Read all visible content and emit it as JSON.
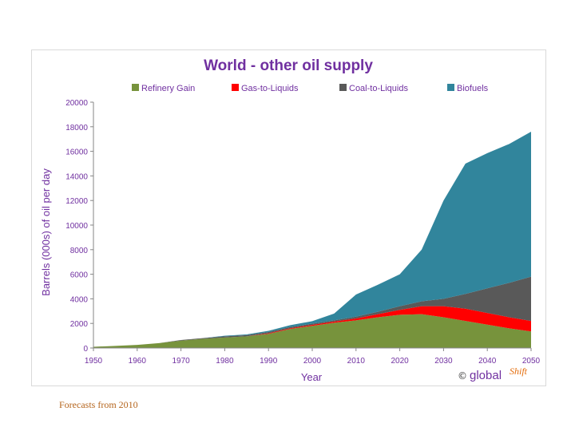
{
  "caption": "Forecasts from 2010",
  "watermark": {
    "copyright": "©",
    "brand_main": "global",
    "brand_sup": "Shift"
  },
  "chart_data": {
    "type": "area",
    "stacked": true,
    "title": "World - other oil supply",
    "xlabel": "Year",
    "ylabel": "Barrels (000s) of oil per day",
    "xlim": [
      1950,
      2050
    ],
    "ylim": [
      0,
      20000
    ],
    "x_ticks": [
      "1950",
      "1960",
      "1970",
      "1980",
      "1990",
      "2000",
      "2010",
      "2020",
      "2030",
      "2040",
      "2050"
    ],
    "y_ticks": [
      "0",
      "2000",
      "4000",
      "6000",
      "8000",
      "10000",
      "12000",
      "14000",
      "16000",
      "18000",
      "20000"
    ],
    "legend_position": "top",
    "grid": false,
    "x": [
      1950,
      1955,
      1960,
      1965,
      1970,
      1975,
      1980,
      1985,
      1990,
      1995,
      2000,
      2005,
      2010,
      2015,
      2020,
      2025,
      2030,
      2035,
      2040,
      2045,
      2050
    ],
    "series": [
      {
        "name": "Refinery Gain",
        "color": "#77933c",
        "values": [
          100,
          170,
          250,
          400,
          600,
          750,
          850,
          950,
          1150,
          1550,
          1800,
          2050,
          2250,
          2500,
          2700,
          2750,
          2500,
          2200,
          1900,
          1600,
          1350
        ]
      },
      {
        "name": "Gas-to-Liquids",
        "color": "#ff0000",
        "values": [
          0,
          0,
          0,
          0,
          0,
          0,
          0,
          0,
          50,
          60,
          80,
          100,
          150,
          250,
          400,
          650,
          900,
          1000,
          950,
          900,
          850
        ]
      },
      {
        "name": "Coal-to-Liquids",
        "color": "#595959",
        "values": [
          0,
          0,
          0,
          0,
          50,
          50,
          100,
          100,
          100,
          100,
          100,
          100,
          150,
          200,
          300,
          400,
          600,
          1200,
          2000,
          2800,
          3600
        ]
      },
      {
        "name": "Biofuels",
        "color": "#31859c",
        "values": [
          0,
          0,
          0,
          0,
          0,
          0,
          50,
          50,
          100,
          150,
          200,
          550,
          1800,
          2200,
          2600,
          4200,
          8000,
          10600,
          11000,
          11300,
          11800
        ]
      }
    ]
  }
}
